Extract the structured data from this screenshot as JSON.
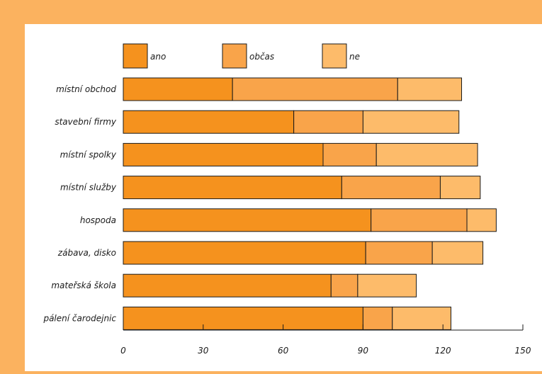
{
  "chart_data": {
    "type": "bar",
    "orientation": "horizontal",
    "stacked": true,
    "categories": [
      "místní obchod",
      "stavební firmy",
      "místní spolky",
      "místní služby",
      "hospoda",
      "zábava, disko",
      "mateřská škola",
      "pálení čarodejnic"
    ],
    "series": [
      {
        "name": "ano",
        "color": "#f5921e",
        "values": [
          41,
          64,
          75,
          82,
          93,
          91,
          78,
          90
        ]
      },
      {
        "name": "občas",
        "color": "#f9a44a",
        "values": [
          62,
          26,
          20,
          37,
          36,
          25,
          10,
          11
        ]
      },
      {
        "name": "ne",
        "color": "#fdbb6a",
        "values": [
          24,
          36,
          38,
          15,
          11,
          19,
          22,
          22
        ]
      }
    ],
    "x_ticks": [
      "0",
      "30",
      "60",
      "90",
      "120",
      "150"
    ],
    "xlim": [
      0,
      150
    ],
    "legend_position": "top",
    "grid": false,
    "title": "",
    "xlabel": "",
    "ylabel": ""
  }
}
